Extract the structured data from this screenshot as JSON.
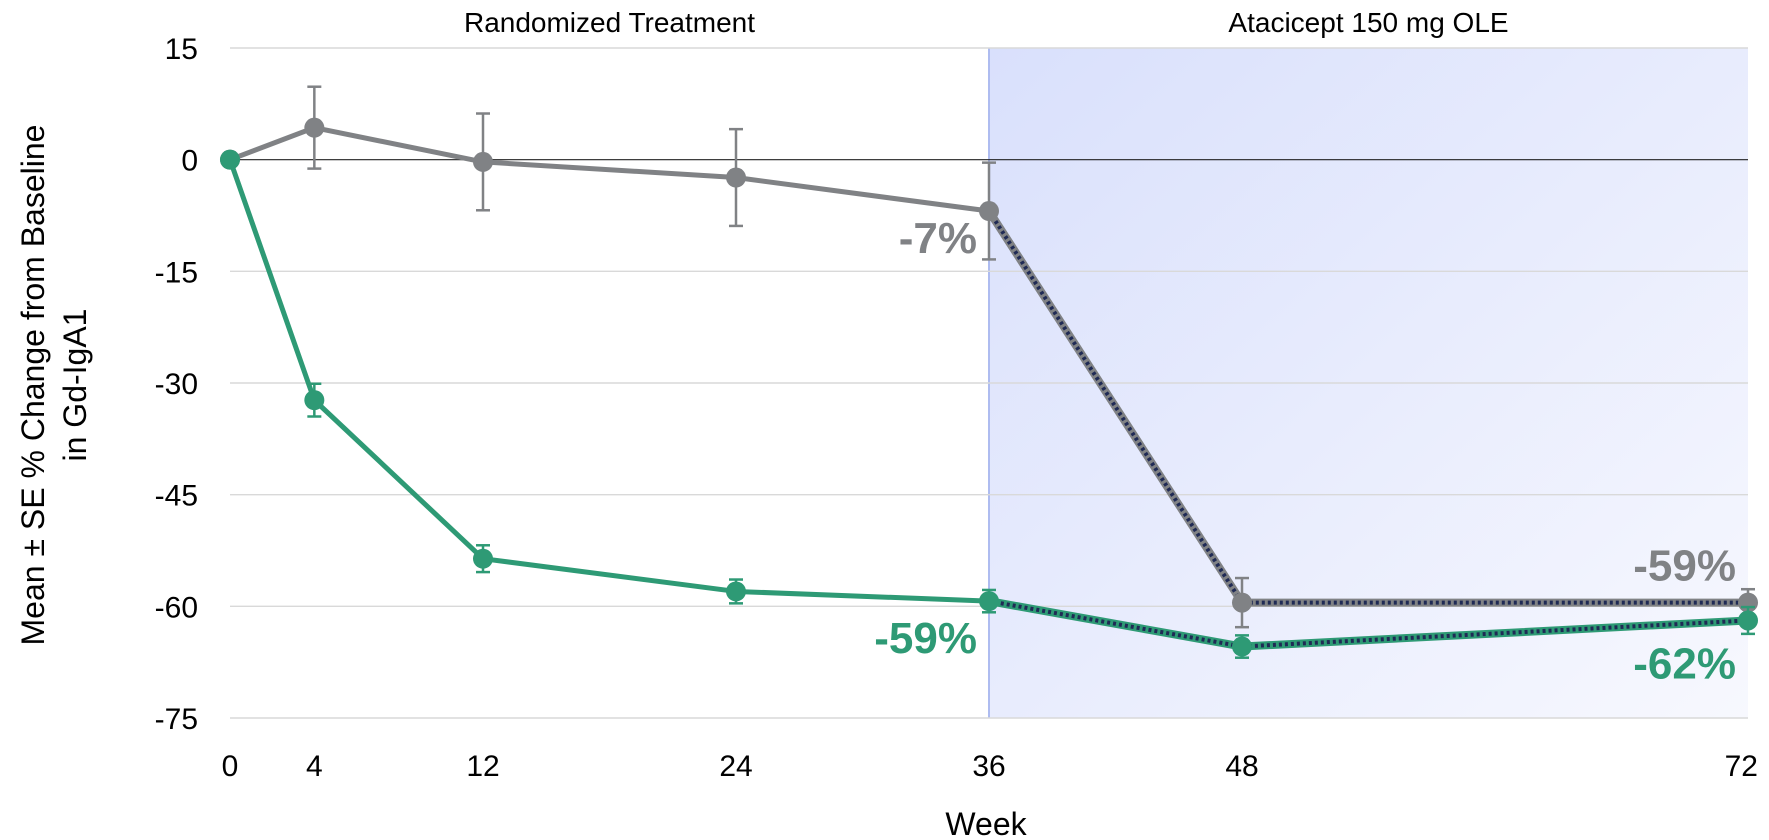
{
  "chart_data": {
    "type": "line",
    "xlabel": "Week",
    "ylabel": [
      "Mean ± SE % Change from Baseline",
      "in Gd-IgA1"
    ],
    "ylim": [
      -75,
      15
    ],
    "yticks": [
      15,
      0,
      -15,
      -30,
      -45,
      -60,
      -75
    ],
    "xticks": [
      0,
      4,
      12,
      24,
      36,
      48,
      72
    ],
    "xlim": [
      0,
      72
    ],
    "grid": "horizontal",
    "regions": [
      {
        "label": "Randomized Treatment",
        "x_range": [
          0,
          36
        ],
        "shaded": false
      },
      {
        "label": "Atacicept 150 mg OLE",
        "x_range": [
          36,
          72
        ],
        "shaded": true,
        "color": "#dde3fb"
      }
    ],
    "series": [
      {
        "color": "#808285",
        "x": [
          0,
          4,
          12,
          24,
          36,
          48,
          72
        ],
        "y": [
          0,
          4.3,
          -0.3,
          -2.4,
          -6.9,
          -59.5,
          -59.5
        ],
        "se": [
          0,
          5.5,
          6.5,
          6.5,
          6.5,
          3.3,
          1.8
        ],
        "dashed_from_index": 4
      },
      {
        "color": "#2e9a75",
        "x": [
          0,
          4,
          12,
          24,
          36,
          48,
          72
        ],
        "y": [
          0,
          -32.3,
          -53.6,
          -58.0,
          -59.3,
          -65.4,
          -61.9
        ],
        "se": [
          0,
          2.2,
          1.8,
          1.6,
          1.5,
          1.5,
          1.8
        ],
        "dashed_from_index": 4
      }
    ],
    "annotations": [
      {
        "text": "-7%",
        "color": "#808285",
        "x": 36,
        "y": -6.9,
        "anchor": "end"
      },
      {
        "text": "-59%",
        "color": "#2e9a75",
        "x": 36,
        "y": -59.3,
        "anchor": "end"
      },
      {
        "text": "-59%",
        "color": "#808285",
        "x": 72,
        "y": -59.5,
        "anchor": "end"
      },
      {
        "text": "-62%",
        "color": "#2e9a75",
        "x": 72,
        "y": -61.9,
        "anchor": "end"
      }
    ],
    "dash_color": "#1f2a55"
  }
}
